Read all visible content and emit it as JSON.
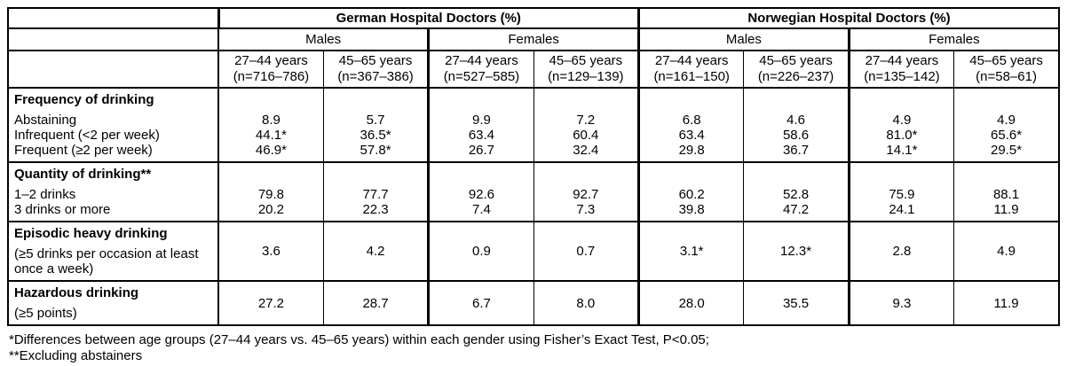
{
  "page": {
    "background": "#ffffff",
    "text_color": "#000000",
    "border_color": "#000000"
  },
  "header": {
    "country_groups": [
      {
        "label": "German Hospital Doctors (%)"
      },
      {
        "label": "Norwegian Hospital Doctors (%)"
      }
    ],
    "gender_groups": [
      {
        "label": "Males"
      },
      {
        "label": "Females"
      },
      {
        "label": "Males"
      },
      {
        "label": "Females"
      }
    ],
    "age_columns": [
      {
        "age_range": "27–44 years",
        "sample": "(n=716–786)"
      },
      {
        "age_range": "45–65 years",
        "sample": "(n=367–386)"
      },
      {
        "age_range": "27–44 years",
        "sample": "(n=527–585)"
      },
      {
        "age_range": "45–65 years",
        "sample": "(n=129–139)"
      },
      {
        "age_range": "27–44 years",
        "sample": "(n=161–150)"
      },
      {
        "age_range": "45–65 years",
        "sample": "(n=226–237)"
      },
      {
        "age_range": "27–44 years",
        "sample": "(n=135–142)"
      },
      {
        "age_range": "45–65 years",
        "sample": "(n=58–61)"
      }
    ]
  },
  "sections": [
    {
      "title": "Frequency of drinking",
      "rows": [
        {
          "label": "Abstaining",
          "values": [
            "8.9",
            "5.7",
            "9.9",
            "7.2",
            "6.8",
            "4.6",
            "4.9",
            "4.9"
          ]
        },
        {
          "label": "Infrequent (<2 per week)",
          "values": [
            "44.1*",
            "36.5*",
            "63.4",
            "60.4",
            "63.4",
            "58.6",
            "81.0*",
            "65.6*"
          ]
        },
        {
          "label": "Frequent (≥2 per week)",
          "values": [
            "46.9*",
            "57.8*",
            "26.7",
            "32.4",
            "29.8",
            "36.7",
            "14.1*",
            "29.5*"
          ]
        }
      ]
    },
    {
      "title": "Quantity of drinking**",
      "rows": [
        {
          "label": "1–2 drinks",
          "values": [
            "79.8",
            "77.7",
            "92.6",
            "92.7",
            "60.2",
            "52.8",
            "75.9",
            "88.1"
          ]
        },
        {
          "label": "3 drinks or more",
          "values": [
            "20.2",
            "22.3",
            "7.4",
            "7.3",
            "39.8",
            "47.2",
            "24.1",
            "11.9"
          ]
        }
      ]
    },
    {
      "title": "Episodic heavy drinking",
      "subtitle": "(≥5 drinks per occasion at least once a week)",
      "values": [
        "3.6",
        "4.2",
        "0.9",
        "0.7",
        "3.1*",
        "12.3*",
        "2.8",
        "4.9"
      ]
    },
    {
      "title": "Hazardous drinking",
      "subtitle": "(≥5 points)",
      "values": [
        "27.2",
        "28.7",
        "6.7",
        "8.0",
        "28.0",
        "35.5",
        "9.3",
        "11.9"
      ]
    }
  ],
  "footnotes": [
    "*Differences between age groups (27–44 years vs. 45–65 years) within each gender using Fisher’s Exact Test, P<0.05;",
    "**Excluding abstainers"
  ]
}
